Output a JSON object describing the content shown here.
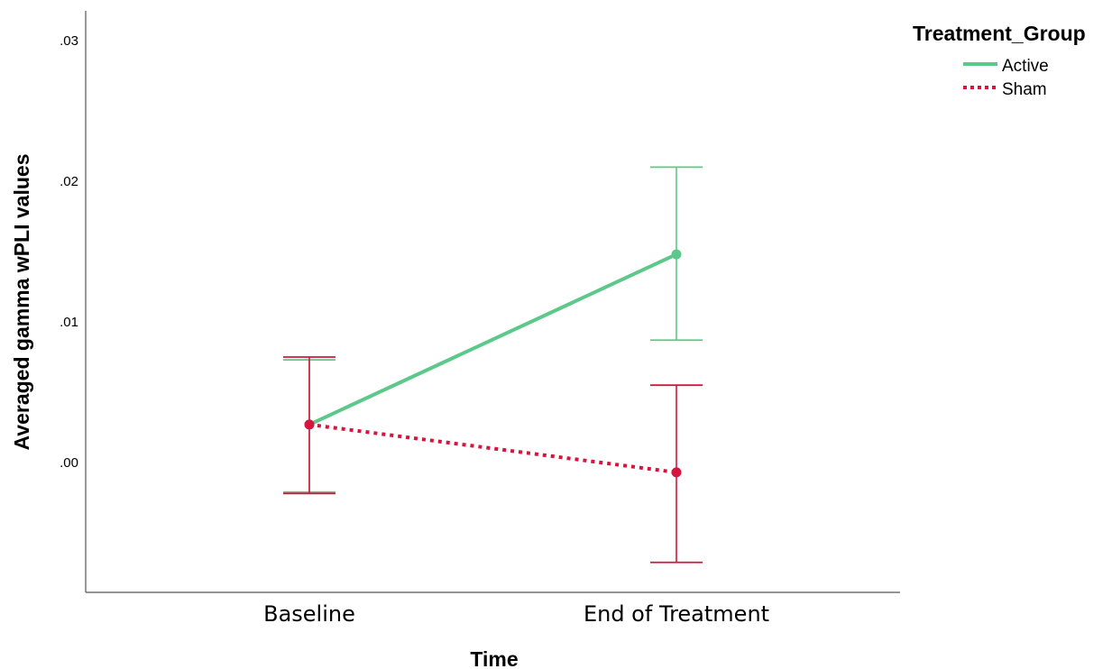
{
  "chart_data": {
    "type": "line",
    "categories": [
      "Baseline",
      "End of Treatment"
    ],
    "xlabel": "Time",
    "ylabel": "Averaged gamma wPLI values",
    "ylim": [
      -0.009,
      0.032
    ],
    "yticks": [
      0.0,
      0.01,
      0.02,
      0.03
    ],
    "ytick_labels": [
      ".00",
      ".01",
      ".02",
      ".03"
    ],
    "grid": false,
    "legend": {
      "title": "Treatment_Group",
      "position": "top-right"
    },
    "series": [
      {
        "name": "Active",
        "color": "#5cc98a",
        "line_style": "solid",
        "values": [
          0.0027,
          0.0148
        ],
        "error_low": [
          -0.0021,
          0.0087
        ],
        "error_high": [
          0.0073,
          0.021
        ]
      },
      {
        "name": "Sham",
        "color": "#d6153f",
        "line_style": "dotted",
        "values": [
          0.0027,
          -0.0007
        ],
        "error_low": [
          -0.0022,
          -0.0071
        ],
        "error_high": [
          0.0075,
          0.0055
        ]
      }
    ]
  }
}
